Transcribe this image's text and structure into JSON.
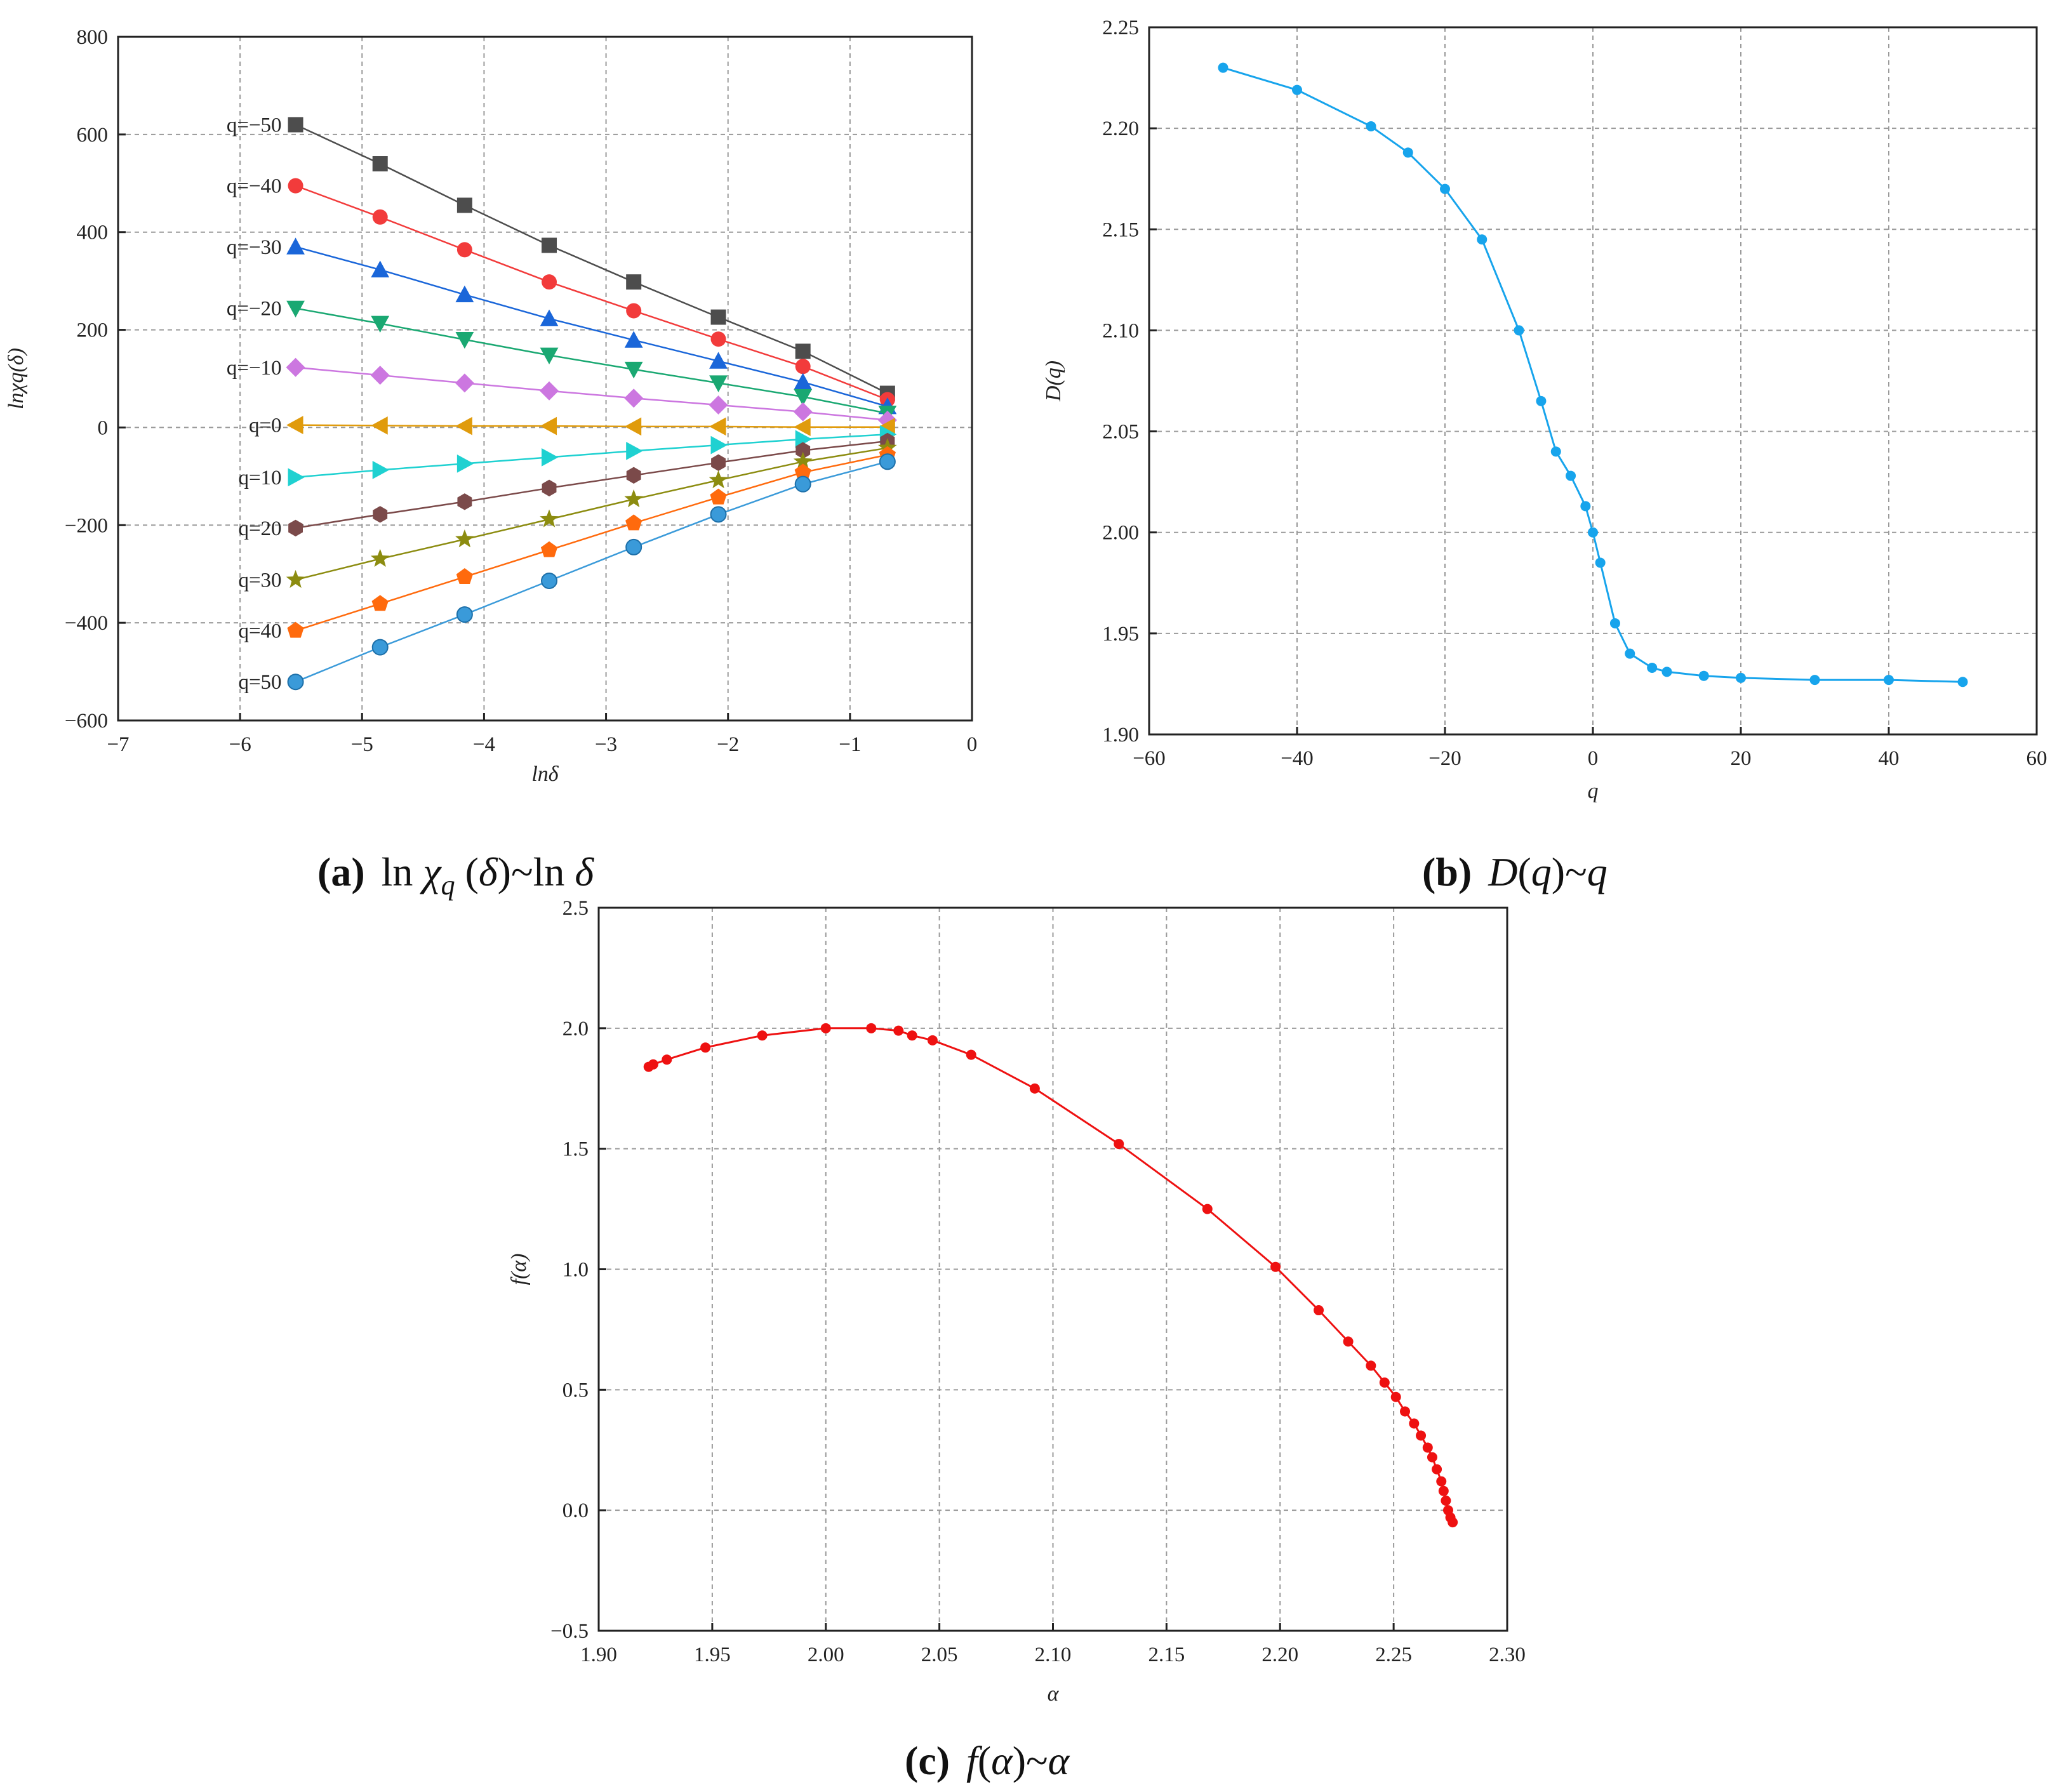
{
  "chart_data": [
    {
      "id": "a",
      "type": "line",
      "title": "ln χq(δ)~ln δ",
      "caption_letter": "(a)",
      "caption_expr": "ln χ_q (δ)~ln δ",
      "xlabel": "lnδ",
      "ylabel": "lnχq(δ)",
      "xlim": [
        -7,
        0
      ],
      "ylim": [
        -600,
        800
      ],
      "xticks": [
        -7,
        -6,
        -5,
        -4,
        -3,
        -2,
        -1,
        0
      ],
      "yticks": [
        -600,
        -400,
        -200,
        0,
        200,
        400,
        600,
        800
      ],
      "grid": true,
      "x": [
        -5.545,
        -4.852,
        -4.159,
        -3.466,
        -2.773,
        -2.079,
        -1.386,
        -0.693
      ],
      "series": [
        {
          "name": "q=−50",
          "color": "#4d4d4d",
          "marker": "square",
          "values": [
            620,
            540,
            455,
            373,
            298,
            226,
            156,
            70
          ]
        },
        {
          "name": "q=−40",
          "color": "#f23b3b",
          "marker": "circle",
          "values": [
            495,
            431,
            364,
            298,
            239,
            181,
            125,
            57
          ]
        },
        {
          "name": "q=−30",
          "color": "#1a66d9",
          "marker": "triangle-up",
          "values": [
            370,
            323,
            272,
            223,
            179,
            136,
            93,
            43
          ]
        },
        {
          "name": "q=−20",
          "color": "#1aa872",
          "marker": "triangle-down",
          "values": [
            244,
            213,
            180,
            148,
            119,
            91,
            63,
            29
          ]
        },
        {
          "name": "q=−10",
          "color": "#cc77e0",
          "marker": "diamond",
          "values": [
            123,
            107,
            91,
            75,
            60,
            46,
            32,
            15
          ]
        },
        {
          "name": "q=0",
          "color": "#e09b0c",
          "marker": "triangle-left",
          "values": [
            5,
            4,
            3,
            3,
            2,
            2,
            1,
            1
          ]
        },
        {
          "name": "q=10",
          "color": "#1fd1d1",
          "marker": "triangle-right",
          "values": [
            -102,
            -87,
            -74,
            -61,
            -48,
            -36,
            -24,
            -14
          ]
        },
        {
          "name": "q=20",
          "color": "#7b4a4a",
          "marker": "hexagon",
          "values": [
            -206,
            -178,
            -152,
            -124,
            -98,
            -72,
            -47,
            -28
          ]
        },
        {
          "name": "q=30",
          "color": "#8c8c10",
          "marker": "star",
          "values": [
            -312,
            -269,
            -229,
            -188,
            -147,
            -108,
            -70,
            -42
          ]
        },
        {
          "name": "q=40",
          "color": "#ff6a0d",
          "marker": "pentagon",
          "values": [
            -416,
            -361,
            -306,
            -251,
            -196,
            -143,
            -92,
            -56
          ]
        },
        {
          "name": "q=50",
          "color": "#3a9ad9",
          "marker": "sphere",
          "values": [
            -521,
            -450,
            -383,
            -314,
            -245,
            -178,
            -116,
            -70
          ]
        }
      ]
    },
    {
      "id": "b",
      "type": "line",
      "title": "D(q)~q",
      "caption_letter": "(b)",
      "caption_expr": "D(q)~q",
      "xlabel": "q",
      "ylabel": "D(q)",
      "xlim": [
        -60,
        60
      ],
      "ylim": [
        1.9,
        2.25
      ],
      "xticks": [
        -60,
        -40,
        -20,
        0,
        20,
        40,
        60
      ],
      "yticks": [
        1.9,
        1.95,
        2.0,
        2.05,
        2.1,
        2.15,
        2.2,
        2.25
      ],
      "grid": true,
      "series": [
        {
          "name": "D(q)",
          "color": "#17a4ec",
          "marker": "circle",
          "x": [
            -50,
            -40,
            -30,
            -25,
            -20,
            -15,
            -10,
            -7,
            -5,
            -3,
            -1,
            0,
            1,
            3,
            5,
            8,
            10,
            15,
            20,
            30,
            40,
            50
          ],
          "values": [
            2.23,
            2.219,
            2.201,
            2.188,
            2.17,
            2.145,
            2.1,
            2.065,
            2.04,
            2.028,
            2.013,
            2.0,
            1.985,
            1.955,
            1.94,
            1.933,
            1.931,
            1.929,
            1.928,
            1.927,
            1.927,
            1.926
          ]
        }
      ]
    },
    {
      "id": "c",
      "type": "line",
      "title": "f(α)~α",
      "caption_letter": "(c)",
      "caption_expr": "f(α)~α",
      "xlabel": "α",
      "ylabel": "f(α)",
      "xlim": [
        1.9,
        2.3
      ],
      "ylim": [
        -0.5,
        2.5
      ],
      "xticks": [
        1.9,
        1.95,
        2.0,
        2.05,
        2.1,
        2.15,
        2.2,
        2.25,
        2.3
      ],
      "yticks": [
        -0.5,
        0.0,
        0.5,
        1.0,
        1.5,
        2.0,
        2.5
      ],
      "grid": true,
      "series": [
        {
          "name": "f(α)",
          "color": "#ee1111",
          "marker": "circle",
          "x": [
            1.922,
            1.924,
            1.93,
            1.947,
            1.972,
            2.0,
            2.02,
            2.032,
            2.038,
            2.047,
            2.064,
            2.092,
            2.129,
            2.168,
            2.198,
            2.217,
            2.23,
            2.24,
            2.246,
            2.251,
            2.255,
            2.259,
            2.262,
            2.265,
            2.267,
            2.269,
            2.271,
            2.272,
            2.273,
            2.274,
            2.275,
            2.276
          ],
          "values": [
            1.84,
            1.85,
            1.87,
            1.92,
            1.97,
            2.0,
            2.0,
            1.99,
            1.97,
            1.95,
            1.89,
            1.75,
            1.52,
            1.25,
            1.01,
            0.83,
            0.7,
            0.6,
            0.53,
            0.47,
            0.41,
            0.36,
            0.31,
            0.26,
            0.22,
            0.17,
            0.12,
            0.08,
            0.04,
            0.0,
            -0.03,
            -0.05
          ]
        }
      ]
    }
  ]
}
